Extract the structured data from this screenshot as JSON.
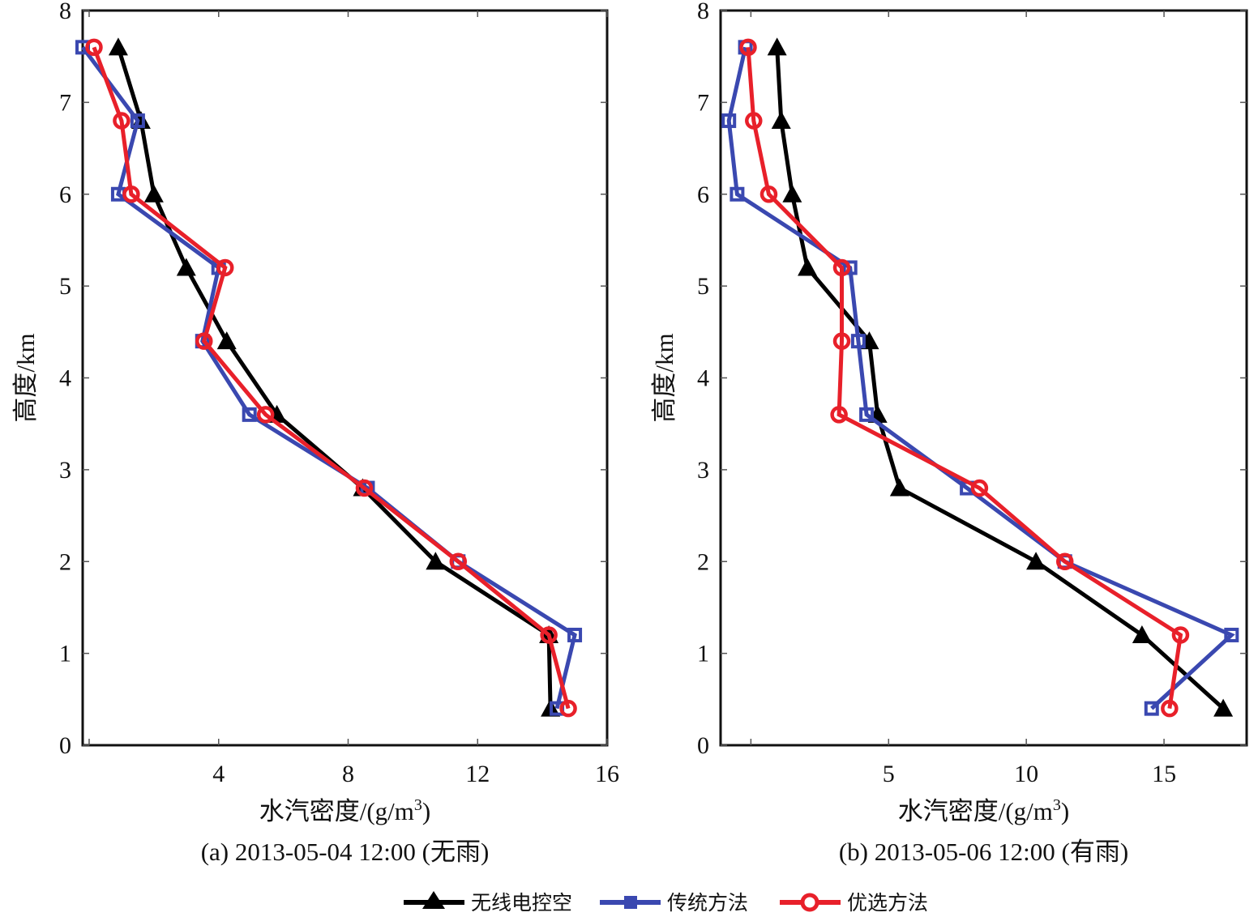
{
  "chart_data": [
    {
      "type": "line",
      "panel": "a",
      "caption": "(a) 2013-05-04 12:00 (无雨)",
      "xlabel": "水汽密度/(g/m³)",
      "xlabel_parts": {
        "main": "水汽密度/(g/m",
        "sup": "3",
        "end": ")"
      },
      "ylabel": "高度/km",
      "xlim": [
        -0.2,
        16
      ],
      "ylim": [
        0,
        8
      ],
      "xticks": [
        0,
        4,
        8,
        12,
        16
      ],
      "xtick_labels": [
        "",
        "4",
        "8",
        "12",
        "16"
      ],
      "yticks": [
        0,
        1,
        2,
        3,
        4,
        5,
        6,
        7,
        8
      ],
      "ytick_labels": [
        "0",
        "1",
        "2",
        "3",
        "4",
        "5",
        "6",
        "7",
        "8"
      ],
      "grid": false,
      "y": [
        7.6,
        6.8,
        6.0,
        5.2,
        4.4,
        3.6,
        2.8,
        2.0,
        1.2,
        0.4
      ],
      "series": [
        {
          "name": "无线电控空",
          "color": "#000000",
          "marker": "triangle",
          "values": [
            0.9,
            1.6,
            2.0,
            3.0,
            4.25,
            5.8,
            8.45,
            10.7,
            14.2,
            14.25
          ]
        },
        {
          "name": "传统方法",
          "color": "#3a48b0",
          "marker": "square",
          "values": [
            -0.2,
            1.5,
            0.9,
            4.0,
            3.5,
            4.95,
            8.6,
            11.4,
            15.0,
            14.45
          ]
        },
        {
          "name": "优选方法",
          "color": "#e8202a",
          "marker": "circle",
          "values": [
            0.15,
            1.0,
            1.3,
            4.2,
            3.55,
            5.45,
            8.5,
            11.4,
            14.2,
            14.8
          ]
        }
      ]
    },
    {
      "type": "line",
      "panel": "b",
      "caption": "(b) 2013-05-06 12:00 (有雨)",
      "xlabel": "水汽密度/(g/m³)",
      "xlabel_parts": {
        "main": "水汽密度/(g/m",
        "sup": "3",
        "end": ")"
      },
      "ylabel": "高度/km",
      "xlim": [
        -1.1,
        18
      ],
      "ylim": [
        0,
        8
      ],
      "xticks": [
        0,
        5,
        10,
        15
      ],
      "xtick_labels": [
        "",
        "5",
        "10",
        "15"
      ],
      "yticks": [
        0,
        1,
        2,
        3,
        4,
        5,
        6,
        7,
        8
      ],
      "ytick_labels": [
        "0",
        "1",
        "2",
        "3",
        "4",
        "5",
        "6",
        "7",
        "8"
      ],
      "grid": false,
      "y": [
        7.6,
        6.8,
        6.0,
        5.2,
        4.4,
        3.6,
        2.8,
        2.0,
        1.2,
        0.4
      ],
      "series": [
        {
          "name": "无线电控空",
          "color": "#000000",
          "marker": "triangle",
          "values": [
            0.95,
            1.1,
            1.5,
            2.05,
            4.3,
            4.6,
            5.4,
            10.35,
            14.2,
            17.15
          ]
        },
        {
          "name": "传统方法",
          "color": "#3a48b0",
          "marker": "square",
          "values": [
            -0.2,
            -0.8,
            -0.5,
            3.6,
            3.9,
            4.2,
            7.85,
            11.4,
            17.45,
            14.55
          ]
        },
        {
          "name": "优选方法",
          "color": "#e8202a",
          "marker": "circle",
          "values": [
            -0.1,
            0.1,
            0.65,
            3.3,
            3.3,
            3.2,
            8.3,
            11.4,
            15.6,
            15.2
          ]
        }
      ]
    }
  ],
  "legend": {
    "placement": "bottom-center",
    "items": [
      {
        "label": "无线电控空",
        "color": "#000000",
        "marker": "triangle"
      },
      {
        "label": "传统方法",
        "color": "#3a48b0",
        "marker": "square"
      },
      {
        "label": "优选方法",
        "color": "#e8202a",
        "marker": "circle"
      }
    ]
  }
}
